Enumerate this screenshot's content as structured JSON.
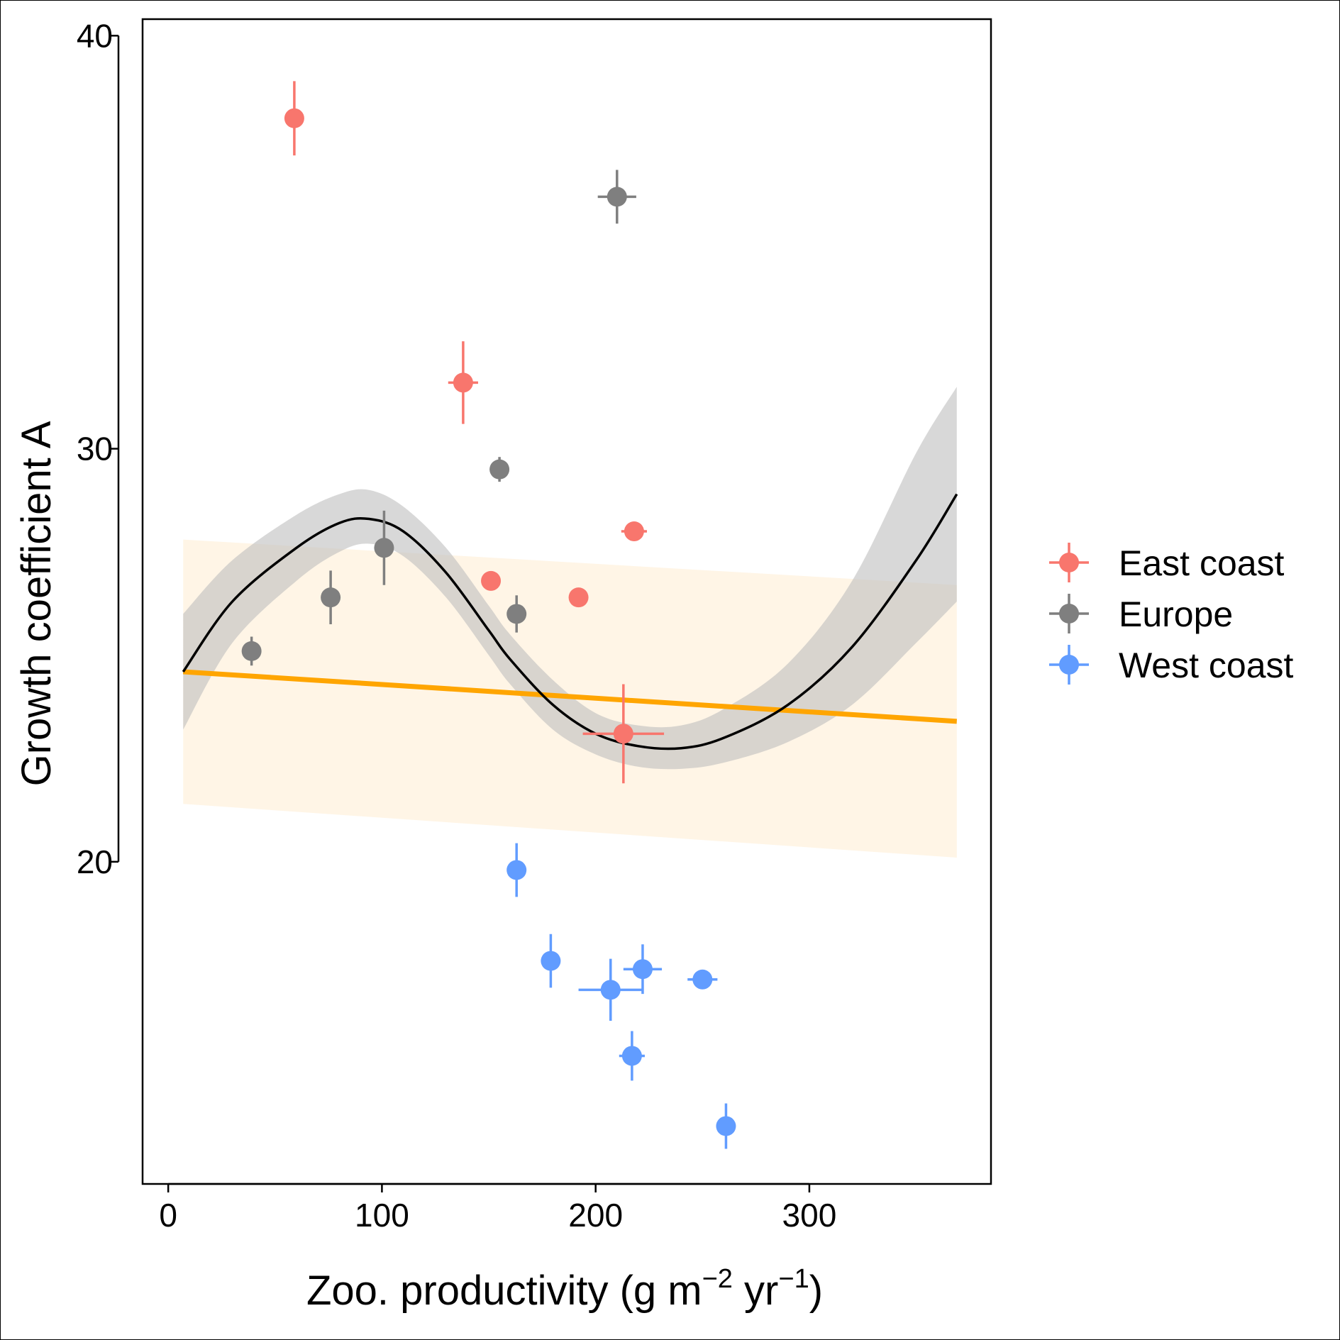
{
  "chart_data": {
    "type": "scatter",
    "xlabel": "Zoo. productivity (g m",
    "xlabel_sup1": "−2",
    "xlabel_mid": " yr",
    "xlabel_sup2": "−1",
    "xlabel_end": ")",
    "ylabel": "Growth coefficient A",
    "xlim": [
      -12,
      385
    ],
    "ylim": [
      12.2,
      40.4
    ],
    "x_ticks": [
      0,
      100,
      200,
      300
    ],
    "y_ticks": [
      20,
      30,
      40
    ],
    "grid": false,
    "legend_position": "right",
    "series": [
      {
        "name": "East coast",
        "color": "#F8766D",
        "points": [
          {
            "x": 59,
            "y": 38.0,
            "xerr": 0,
            "yerr": 0.9
          },
          {
            "x": 138,
            "y": 31.6,
            "xerr": 7,
            "yerr": 1.0
          },
          {
            "x": 151,
            "y": 26.8,
            "xerr": 0,
            "yerr": 0
          },
          {
            "x": 192,
            "y": 26.4,
            "xerr": 0,
            "yerr": 0
          },
          {
            "x": 218,
            "y": 28.0,
            "xerr": 6,
            "yerr": 0
          },
          {
            "x": 213,
            "y": 23.1,
            "xerr": 19,
            "yerr": 1.2
          }
        ]
      },
      {
        "name": "Europe",
        "color": "#7F7F7F",
        "points": [
          {
            "x": 39,
            "y": 25.1,
            "xerr": 0,
            "yerr": 0.35
          },
          {
            "x": 76,
            "y": 26.4,
            "xerr": 0,
            "yerr": 0.65
          },
          {
            "x": 101,
            "y": 27.6,
            "xerr": 0,
            "yerr": 0.9
          },
          {
            "x": 155,
            "y": 29.5,
            "xerr": 0,
            "yerr": 0.3
          },
          {
            "x": 163,
            "y": 26.0,
            "xerr": 0,
            "yerr": 0.45
          },
          {
            "x": 210,
            "y": 36.1,
            "xerr": 9,
            "yerr": 0.65
          }
        ]
      },
      {
        "name": "West coast",
        "color": "#619CFF",
        "points": [
          {
            "x": 163,
            "y": 19.8,
            "xerr": 0,
            "yerr": 0.65
          },
          {
            "x": 179,
            "y": 17.6,
            "xerr": 0,
            "yerr": 0.65
          },
          {
            "x": 207,
            "y": 16.9,
            "xerr": 15,
            "yerr": 0.75
          },
          {
            "x": 222,
            "y": 17.4,
            "xerr": 9,
            "yerr": 0.6
          },
          {
            "x": 250,
            "y": 17.15,
            "xerr": 7,
            "yerr": 0
          },
          {
            "x": 217,
            "y": 15.3,
            "xerr": 6,
            "yerr": 0.6
          },
          {
            "x": 261,
            "y": 13.6,
            "xerr": 0,
            "yerr": 0.55
          }
        ]
      }
    ],
    "linear_fit": {
      "color": "#FFA500",
      "band_color": "#FFF5E6",
      "x": [
        7,
        369
      ],
      "y": [
        24.6,
        23.4
      ],
      "lower": [
        21.4,
        20.1
      ],
      "upper": [
        27.8,
        26.7
      ]
    },
    "smooth_fit": {
      "color": "#000000",
      "band_color": "#BEBEBE",
      "x": [
        7,
        30,
        60,
        80,
        94,
        110,
        130,
        150,
        160,
        180,
        200,
        220,
        240,
        260,
        290,
        320,
        350,
        369
      ],
      "y": [
        24.6,
        26.3,
        27.6,
        28.2,
        28.3,
        28.0,
        27.0,
        25.6,
        24.9,
        23.8,
        23.1,
        22.8,
        22.75,
        23.0,
        23.8,
        25.2,
        27.3,
        28.9
      ],
      "lower": [
        23.2,
        25.3,
        26.8,
        27.5,
        27.7,
        27.4,
        26.4,
        25.0,
        24.3,
        23.2,
        22.6,
        22.3,
        22.25,
        22.4,
        22.9,
        23.8,
        25.3,
        26.3
      ],
      "upper": [
        26.0,
        27.3,
        28.4,
        28.9,
        29.0,
        28.6,
        27.6,
        26.2,
        25.5,
        24.4,
        23.6,
        23.3,
        23.3,
        23.7,
        24.8,
        26.8,
        29.9,
        31.5
      ]
    }
  }
}
